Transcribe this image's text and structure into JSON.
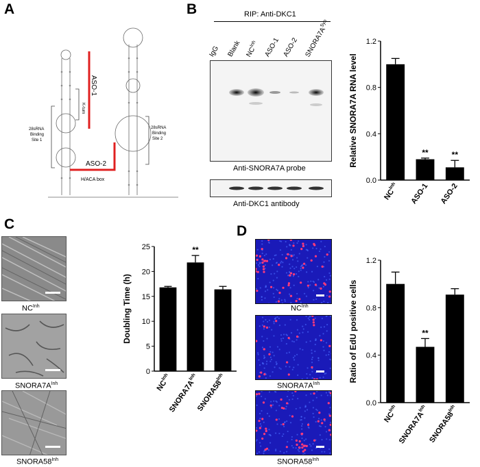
{
  "panels": {
    "A": {
      "label": "A",
      "aso1": "ASO-1",
      "aso2": "ASO-2",
      "kturn": "K-turn",
      "site1": [
        "28sRNA",
        "Binding",
        "Site 1"
      ],
      "site2": [
        "28sRNA",
        "Binding",
        "Site 2"
      ],
      "haca": "H/ACA box"
    },
    "B": {
      "label": "B",
      "rip_title": "RIP: Anti-DKC1",
      "lanes": [
        "IgG",
        "Blank",
        "NC",
        "ASO-1",
        "ASO-2",
        "SNORA7A"
      ],
      "lane_sups": [
        "",
        "",
        "Inh",
        "",
        "",
        "Syn"
      ],
      "probe_caption": "Anti-SNORA7A probe",
      "antibody_caption": "Anti-DKC1 antibody"
    },
    "C": {
      "label": "C",
      "images": [
        {
          "name": "NC",
          "sup": "Inh"
        },
        {
          "name": "SNORA7A",
          "sup": "Inh"
        },
        {
          "name": "SNORA58",
          "sup": "Inh"
        }
      ]
    },
    "D": {
      "label": "D",
      "images": [
        {
          "name": "NC",
          "sup": "Inh"
        },
        {
          "name": "SNORA7A",
          "sup": "Inh"
        },
        {
          "name": "SNORA58",
          "sup": "Inh"
        }
      ]
    }
  },
  "chart_data": [
    {
      "id": "B",
      "type": "bar",
      "categories": [
        "NC",
        "ASO-1",
        "ASO-2"
      ],
      "category_sups": [
        "Inh",
        "",
        ""
      ],
      "values": [
        1.0,
        0.18,
        0.11
      ],
      "errors": [
        0.05,
        0.01,
        0.06
      ],
      "significance": [
        "",
        "**",
        "**"
      ],
      "ylabel": "Relative SNORA7A RNA level",
      "ylim": [
        0,
        1.2
      ],
      "yticks": [
        0.0,
        0.4,
        0.8,
        1.2
      ],
      "ytick_labels": [
        "0.0",
        "0.4",
        "0.8",
        "1.2"
      ]
    },
    {
      "id": "C",
      "type": "bar",
      "categories": [
        "NC",
        "SNORA7A",
        "SNORA58"
      ],
      "category_sups": [
        "Inh",
        "Inh",
        "Inh"
      ],
      "values": [
        16.8,
        21.8,
        16.4
      ],
      "errors": [
        0.2,
        1.4,
        0.6
      ],
      "significance": [
        "",
        "**",
        ""
      ],
      "ylabel": "Doubling Time (h)",
      "ylim": [
        0,
        25
      ],
      "yticks": [
        0,
        5,
        10,
        15,
        20,
        25
      ],
      "ytick_labels": [
        "0",
        "5",
        "10",
        "15",
        "20",
        "25"
      ]
    },
    {
      "id": "D",
      "type": "bar",
      "categories": [
        "NC",
        "SNORA7A",
        "SNORA58"
      ],
      "category_sups": [
        "Inh",
        "Inh",
        "Inh"
      ],
      "values": [
        1.0,
        0.47,
        0.91
      ],
      "errors": [
        0.1,
        0.07,
        0.05
      ],
      "significance": [
        "",
        "**",
        ""
      ],
      "ylabel": "Ratio of EdU positive cells",
      "ylim": [
        0,
        1.2
      ],
      "yticks": [
        0.0,
        0.4,
        0.8,
        1.2
      ],
      "ytick_labels": [
        "0.0",
        "0.4",
        "0.8",
        "1.2"
      ]
    }
  ]
}
